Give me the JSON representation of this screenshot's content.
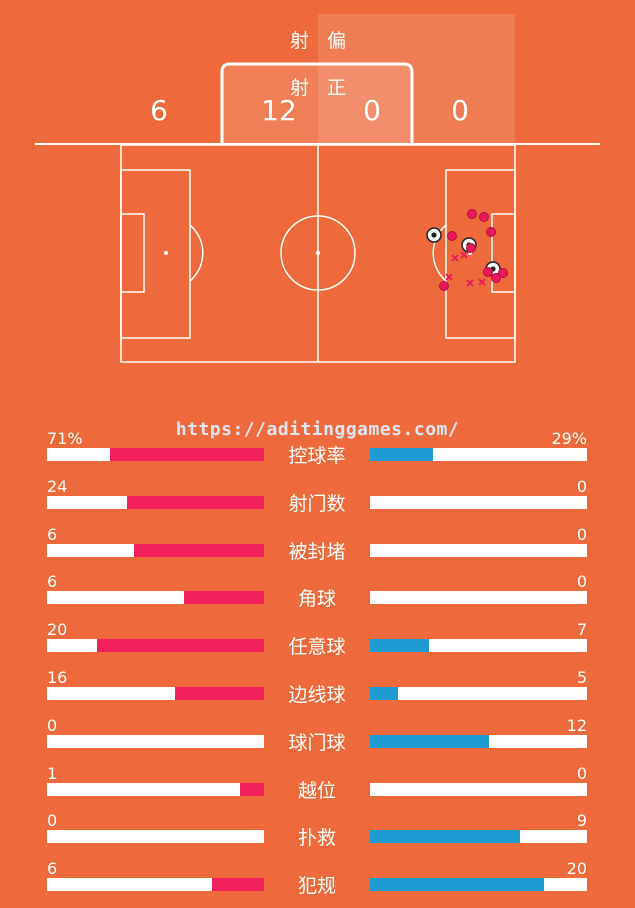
{
  "colors": {
    "background": "#ee6a3c",
    "home_bar": "#f5215e",
    "away_bar": "#1f9bd4",
    "bar_track": "#ffffff"
  },
  "shots": {
    "off_target_label": [
      "射",
      "偏"
    ],
    "on_target_label": [
      "射",
      "正"
    ],
    "home_off_target": "6",
    "home_on_target": "12",
    "away_on_target": "0",
    "away_off_target": "0"
  },
  "watermark": "https://aditinggames.com/",
  "stats": [
    {
      "label": "控球率",
      "home": "71%",
      "away": "29%",
      "home_frac": 0.71,
      "away_frac": 0.29
    },
    {
      "label": "射门数",
      "home": "24",
      "away": "0",
      "home_frac": 0.63,
      "away_frac": 0
    },
    {
      "label": "被封堵",
      "home": "6",
      "away": "0",
      "home_frac": 0.6,
      "away_frac": 0
    },
    {
      "label": "角球",
      "home": "6",
      "away": "0",
      "home_frac": 0.37,
      "away_frac": 0
    },
    {
      "label": "任意球",
      "home": "20",
      "away": "7",
      "home_frac": 0.77,
      "away_frac": 0.27
    },
    {
      "label": "边线球",
      "home": "16",
      "away": "5",
      "home_frac": 0.41,
      "away_frac": 0.13
    },
    {
      "label": "球门球",
      "home": "0",
      "away": "12",
      "home_frac": 0,
      "away_frac": 0.55
    },
    {
      "label": "越位",
      "home": "1",
      "away": "0",
      "home_frac": 0.11,
      "away_frac": 0
    },
    {
      "label": "扑救",
      "home": "0",
      "away": "9",
      "home_frac": 0,
      "away_frac": 0.69
    },
    {
      "label": "犯规",
      "home": "6",
      "away": "20",
      "home_frac": 0.24,
      "away_frac": 0.8
    }
  ],
  "shot_map": [
    {
      "type": "ball"
    },
    {
      "type": "ball"
    },
    {
      "type": "ball"
    },
    {
      "type": "dot"
    },
    {
      "type": "dot"
    },
    {
      "type": "dot"
    },
    {
      "type": "dot"
    },
    {
      "type": "dot"
    },
    {
      "type": "dot"
    },
    {
      "type": "dot"
    },
    {
      "type": "dot"
    },
    {
      "type": "dot"
    },
    {
      "type": "cross"
    },
    {
      "type": "cross"
    },
    {
      "type": "cross"
    },
    {
      "type": "cross"
    },
    {
      "type": "cross"
    }
  ]
}
